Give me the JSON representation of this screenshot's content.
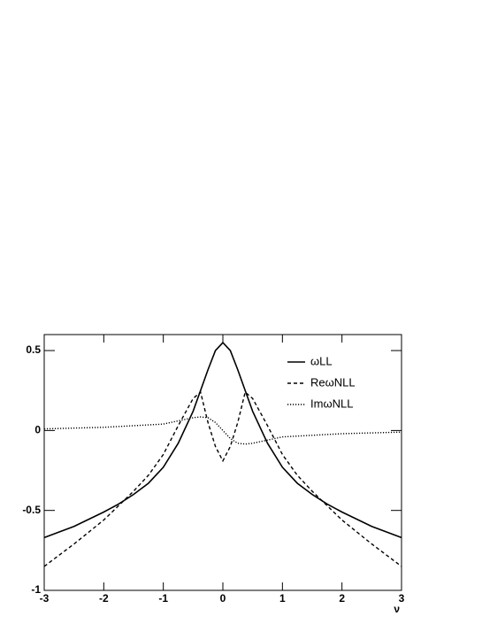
{
  "chart_data": {
    "type": "line",
    "x_label": "ν",
    "x": [
      -3,
      -2.5,
      -2,
      -1.75,
      -1.5,
      -1.25,
      -1,
      -0.75,
      -0.5,
      -0.375,
      -0.25,
      -0.125,
      0,
      0.125,
      0.25,
      0.375,
      0.5,
      0.75,
      1,
      1.25,
      1.5,
      1.75,
      2,
      2.5,
      3
    ],
    "series": [
      {
        "name": "ωLL",
        "color": "#000000",
        "style": "solid",
        "values": [
          -0.67,
          -0.6,
          -0.51,
          -0.46,
          -0.4,
          -0.33,
          -0.23,
          -0.08,
          0.12,
          0.25,
          0.38,
          0.5,
          0.55,
          0.5,
          0.38,
          0.25,
          0.12,
          -0.08,
          -0.23,
          -0.33,
          -0.4,
          -0.46,
          -0.51,
          -0.6,
          -0.67
        ]
      },
      {
        "name": "ReωNLL",
        "color": "#000000",
        "style": "dashed",
        "values": [
          -0.85,
          -0.71,
          -0.56,
          -0.47,
          -0.38,
          -0.28,
          -0.15,
          0.03,
          0.2,
          0.24,
          0.05,
          -0.1,
          -0.19,
          -0.1,
          0.05,
          0.24,
          0.2,
          0.03,
          -0.15,
          -0.28,
          -0.38,
          -0.47,
          -0.56,
          -0.71,
          -0.85
        ]
      },
      {
        "name": "ImωNLL",
        "color": "#000000",
        "style": "dotted",
        "values": [
          0.01,
          0.015,
          0.02,
          0.025,
          0.03,
          0.035,
          0.04,
          0.06,
          0.08,
          0.085,
          0.08,
          0.05,
          0,
          -0.05,
          -0.08,
          -0.085,
          -0.08,
          -0.06,
          -0.04,
          -0.035,
          -0.03,
          -0.025,
          -0.02,
          -0.015,
          -0.01
        ]
      }
    ],
    "xlim": [
      -3,
      3
    ],
    "ylim": [
      -1,
      0.6
    ],
    "xticks": [
      -3,
      -2,
      -1,
      0,
      1,
      2,
      3
    ],
    "yticks": [
      -1,
      -0.5,
      0,
      0.5
    ],
    "legend": "top-right"
  }
}
